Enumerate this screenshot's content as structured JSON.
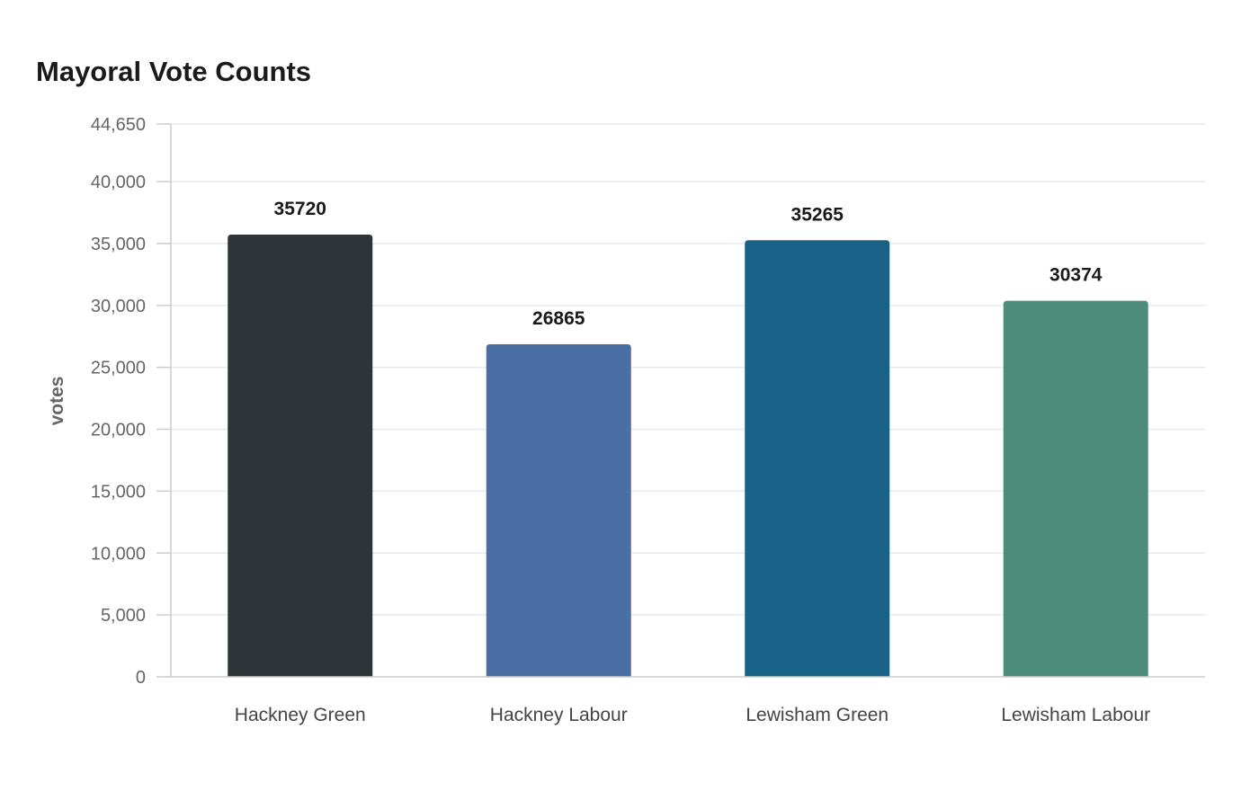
{
  "chart_data": {
    "type": "bar",
    "title": "Mayoral Vote Counts",
    "xlabel": "",
    "ylabel": "votes",
    "categories": [
      "Hackney Green",
      "Hackney Labour",
      "Lewisham Green",
      "Lewisham Labour"
    ],
    "values": [
      35720,
      26865,
      35265,
      30374
    ],
    "value_labels": [
      "35720",
      "26865",
      "35265",
      "30374"
    ],
    "colors": [
      "#2d3538",
      "#4a6fa5",
      "#186288",
      "#4e8c7a"
    ],
    "ylim": [
      0,
      44650
    ],
    "yticks": [
      0,
      5000,
      10000,
      15000,
      20000,
      25000,
      30000,
      35000,
      40000,
      44650
    ],
    "ytick_labels": [
      "0",
      "5,000",
      "10,000",
      "15,000",
      "20,000",
      "25,000",
      "30,000",
      "35,000",
      "40,000",
      "44,650"
    ],
    "grid": true,
    "legend": "none"
  }
}
